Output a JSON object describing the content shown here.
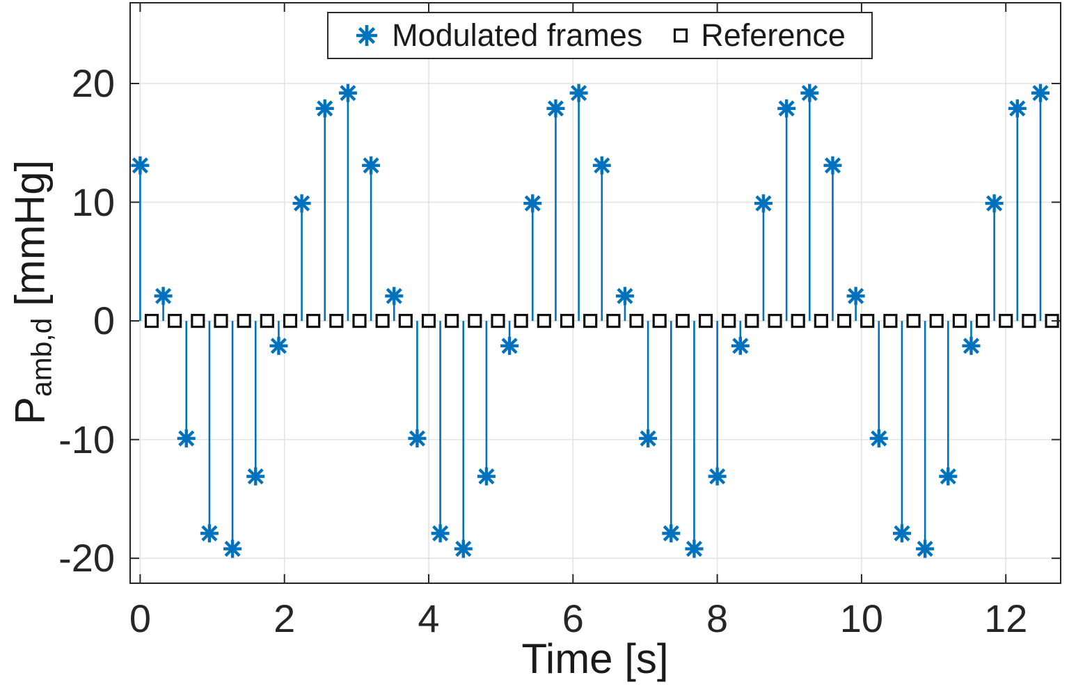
{
  "chart_data": {
    "type": "stem",
    "xlabel": "Time [s]",
    "ylabel": {
      "main": "P",
      "sub": "amb,d",
      "unit": "[mmHg]"
    },
    "xlim": [
      -0.139,
      12.76
    ],
    "ylim": [
      -22.1,
      26.8
    ],
    "xticks": [
      0,
      2,
      4,
      6,
      8,
      10,
      12
    ],
    "yticks": [
      -20,
      -10,
      0,
      10,
      20
    ],
    "grid": true,
    "axis_color": "#262626",
    "grid_color": "#e3e3e3",
    "legend": {
      "position": "top-center-inside",
      "entries": [
        {
          "label": "Modulated frames",
          "marker": "asterisk",
          "color": "#0072BD"
        },
        {
          "label": "Reference",
          "marker": "square",
          "color": "#111111"
        }
      ]
    },
    "series": [
      {
        "name": "Modulated frames",
        "type": "stem",
        "marker": "asterisk",
        "color": "#0072BD",
        "x": [
          0,
          0.32,
          0.64,
          0.96,
          1.28,
          1.6,
          1.92,
          2.24,
          2.56,
          2.88,
          3.2,
          3.52,
          3.84,
          4.16,
          4.48,
          4.8,
          5.12,
          5.44,
          5.76,
          6.08,
          6.4,
          6.72,
          7.04,
          7.36,
          7.68,
          8,
          8.32,
          8.64,
          8.96,
          9.28,
          9.6,
          9.92,
          10.24,
          10.56,
          10.88,
          11.2,
          11.52,
          11.84,
          12.16,
          12.48
        ],
        "y": [
          13.1,
          2.1,
          -9.9,
          -17.9,
          -19.2,
          -13.1,
          -2.1,
          9.9,
          17.9,
          19.2,
          13.1,
          2.1,
          -9.9,
          -17.9,
          -19.2,
          -13.1,
          -2.1,
          9.9,
          17.9,
          19.2,
          13.1,
          2.1,
          -9.9,
          -17.9,
          -19.2,
          -13.1,
          -2.1,
          9.9,
          17.9,
          19.2,
          13.1,
          2.1,
          -9.9,
          -17.9,
          -19.2,
          -13.1,
          -2.1,
          9.9,
          17.9,
          19.2
        ]
      },
      {
        "name": "Reference",
        "type": "scatter",
        "marker": "square",
        "color": "#111111",
        "x": [
          0.16,
          0.48,
          0.8,
          1.12,
          1.44,
          1.76,
          2.08,
          2.4,
          2.72,
          3.04,
          3.36,
          3.68,
          4,
          4.32,
          4.64,
          4.96,
          5.28,
          5.6,
          5.92,
          6.24,
          6.56,
          6.88,
          7.2,
          7.52,
          7.84,
          8.16,
          8.48,
          8.8,
          9.12,
          9.44,
          9.76,
          10.08,
          10.4,
          10.72,
          11.04,
          11.36,
          11.68,
          12,
          12.32,
          12.64
        ],
        "y": [
          0,
          0,
          0,
          0,
          0,
          0,
          0,
          0,
          0,
          0,
          0,
          0,
          0,
          0,
          0,
          0,
          0,
          0,
          0,
          0,
          0,
          0,
          0,
          0,
          0,
          0,
          0,
          0,
          0,
          0,
          0,
          0,
          0,
          0,
          0,
          0,
          0,
          0,
          0,
          0
        ]
      }
    ]
  }
}
